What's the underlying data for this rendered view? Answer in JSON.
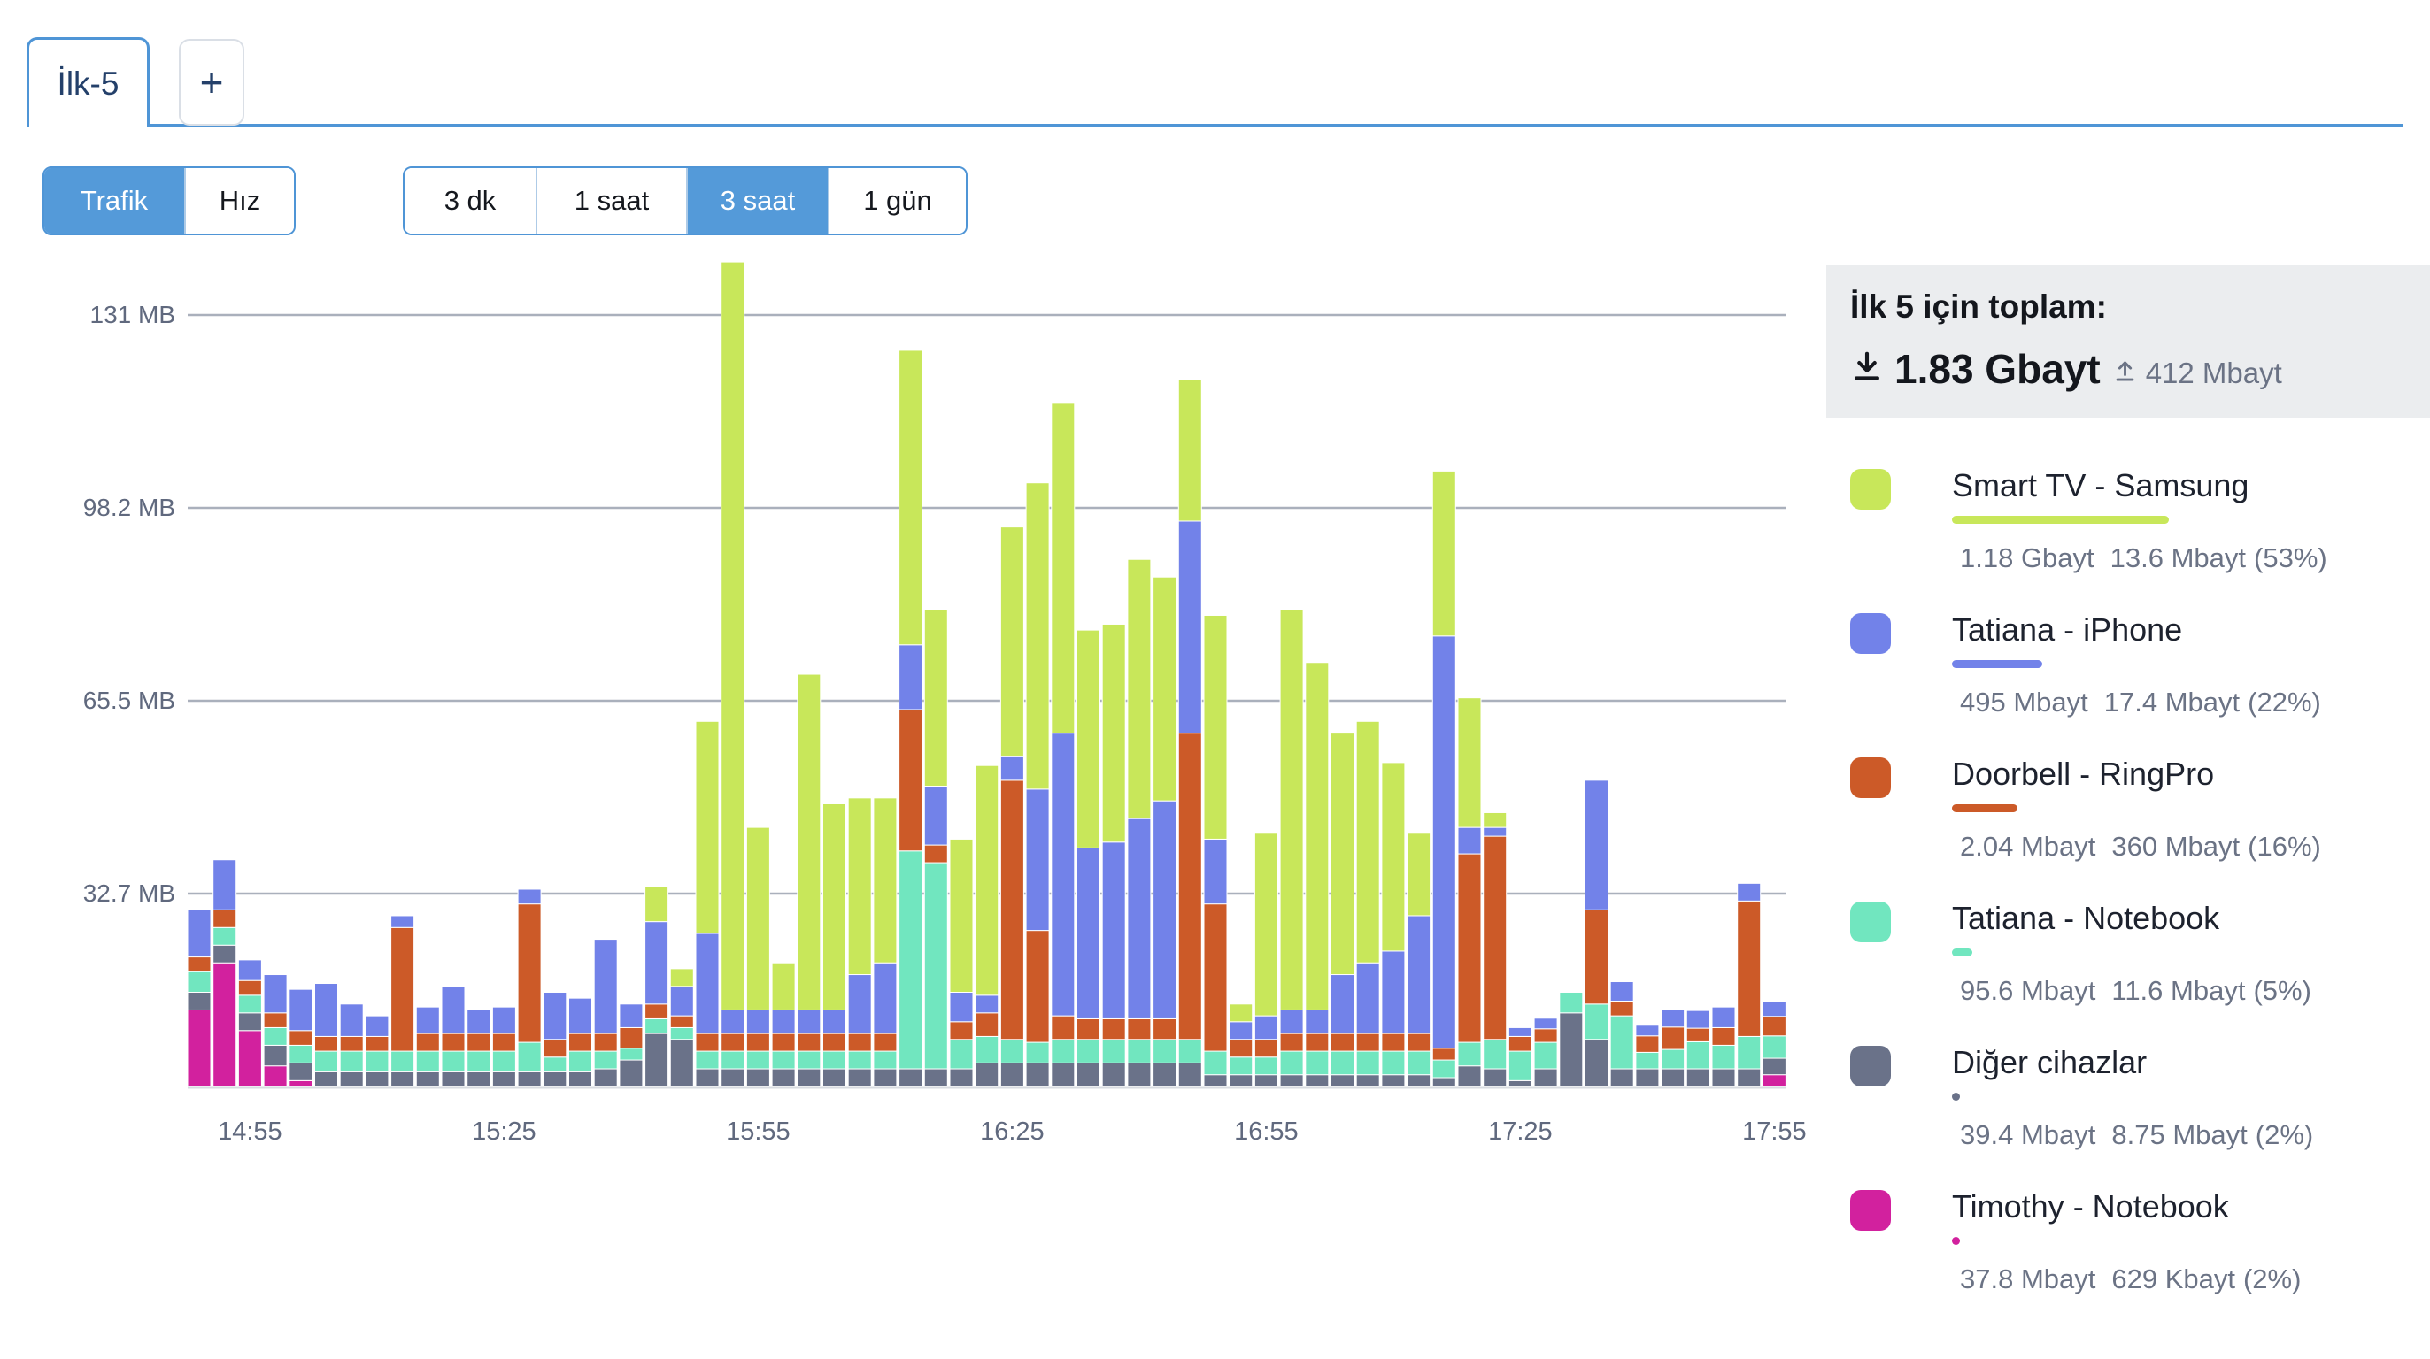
{
  "tabs": {
    "active_tab": "İlk-5",
    "add_tab": "+"
  },
  "controls": {
    "mode_toggle": {
      "options": [
        "Trafik",
        "Hız"
      ],
      "selected": "Trafik"
    },
    "range_toggle": {
      "options": [
        "3 dk",
        "1 saat",
        "3 saat",
        "1 gün"
      ],
      "selected": "3 saat"
    }
  },
  "summary": {
    "title": "İlk 5 için toplam:",
    "download": "1.83 Gbayt",
    "upload": "412 Mbayt"
  },
  "legend": {
    "items": [
      {
        "name": "Smart TV - Samsung",
        "color": "#c8e75a",
        "download": "1.18 Gbayt",
        "upload": "13.6 Mbayt",
        "share": "(53%)",
        "pct": 53
      },
      {
        "name": "Tatiana - iPhone",
        "color": "#7282e9",
        "download": "495 Mbayt",
        "upload": "17.4 Mbayt",
        "share": "(22%)",
        "pct": 22
      },
      {
        "name": "Doorbell - RingPro",
        "color": "#cc5a28",
        "download": "2.04 Mbayt",
        "upload": "360 Mbayt",
        "share": "(16%)",
        "pct": 16
      },
      {
        "name": "Tatiana - Notebook",
        "color": "#71e6bf",
        "download": "95.6 Mbayt",
        "upload": "11.6 Mbayt",
        "share": "(5%)",
        "pct": 5
      },
      {
        "name": "Diğer cihazlar",
        "color": "#6a7289",
        "download": "39.4 Mbayt",
        "upload": "8.75 Mbayt",
        "share": "(2%)",
        "pct": 2
      },
      {
        "name": "Timothy - Notebook",
        "color": "#d2219e",
        "download": "37.8 Mbayt",
        "upload": "629 Kbayt",
        "share": "(2%)",
        "pct": 2
      }
    ]
  },
  "chart_data": {
    "type": "bar",
    "stacked": true,
    "title": "",
    "xlabel": "",
    "ylabel": "",
    "unit": "MB",
    "interval_minutes": 3,
    "ylim": [
      0,
      143
    ],
    "grid": true,
    "y_ticks": [
      "32.7 MB",
      "65.5 MB",
      "98.2 MB",
      "131 MB"
    ],
    "y_tick_values_mb": [
      32.75,
      65.5,
      98.25,
      131
    ],
    "x_labels": [
      "14:55",
      "15:25",
      "15:55",
      "16:25",
      "16:55",
      "17:25",
      "17:55"
    ],
    "x_label_indices": [
      2,
      12,
      22,
      32,
      42,
      52,
      62
    ],
    "stack_order_bottom_to_top": [
      "Timothy - Notebook",
      "Diğer cihazlar",
      "Tatiana - Notebook",
      "Doorbell - RingPro",
      "Tatiana - iPhone",
      "Smart TV - Samsung"
    ],
    "series": [
      {
        "name": "Timothy - Notebook",
        "color": "#d2219e",
        "values": [
          13,
          21,
          9.5,
          3.5,
          1,
          0,
          0,
          0,
          0,
          0,
          0,
          0,
          0,
          0,
          0,
          0,
          0,
          0,
          0,
          0,
          0,
          0,
          0,
          0,
          0,
          0,
          0,
          0,
          0,
          0,
          0,
          0,
          0,
          0,
          0,
          0,
          0,
          0,
          0,
          0,
          0,
          0,
          0,
          0,
          0,
          0,
          0,
          0,
          0,
          0,
          0,
          0,
          0,
          0,
          0,
          0,
          0,
          0,
          0,
          0,
          0,
          0,
          2
        ]
      },
      {
        "name": "Diğer cihazlar",
        "color": "#6a7289",
        "values": [
          3,
          3,
          3,
          3.5,
          3,
          2.5,
          2.5,
          2.5,
          2.5,
          2.5,
          2.5,
          2.5,
          2.5,
          2.5,
          2.5,
          2.5,
          3,
          4.5,
          9,
          8,
          3,
          3,
          3,
          3,
          3,
          3,
          3,
          3,
          3,
          3,
          3,
          4,
          4,
          4,
          4,
          4,
          4,
          4,
          4,
          4,
          2,
          2,
          2,
          2,
          2,
          2,
          2,
          2,
          2,
          1.5,
          3.5,
          3,
          1,
          3,
          12.5,
          8,
          3,
          3,
          3,
          3,
          3,
          3,
          2.8
        ]
      },
      {
        "name": "Tatiana - Notebook",
        "color": "#71e6bf",
        "values": [
          3.5,
          3,
          3,
          3,
          3,
          3.5,
          3.5,
          3.5,
          3.5,
          3.5,
          3.5,
          3.5,
          3.5,
          5,
          2.5,
          3.5,
          3,
          2,
          2.5,
          2,
          3,
          3,
          3,
          3,
          3,
          3,
          3,
          3,
          37,
          35,
          5,
          4.5,
          4,
          3.5,
          4,
          4,
          4,
          4,
          4,
          4,
          4,
          3,
          3,
          4,
          4,
          4,
          4,
          4,
          4,
          3,
          4,
          5,
          5,
          4.5,
          3.5,
          6,
          9,
          2.8,
          3.3,
          4.6,
          4,
          5.5,
          3.8
        ]
      },
      {
        "name": "Doorbell - RingPro",
        "color": "#cc5a28",
        "values": [
          2.5,
          3,
          2.5,
          2.5,
          2.5,
          2.5,
          2.5,
          2.5,
          21,
          3,
          3,
          3,
          3,
          23.5,
          3,
          3,
          3,
          3.5,
          2.5,
          2,
          3,
          3,
          3,
          3,
          3,
          3,
          3,
          3,
          24,
          3,
          3,
          4,
          44,
          19,
          4,
          3.5,
          3.5,
          3.5,
          3.5,
          52,
          25,
          3,
          3,
          3,
          3,
          3,
          3,
          3,
          3,
          2,
          32,
          34.5,
          2.5,
          2.3,
          0,
          16,
          2.5,
          2.8,
          3.8,
          2.3,
          3,
          23,
          3.3
        ]
      },
      {
        "name": "Tatiana - iPhone",
        "color": "#7282e9",
        "values": [
          8,
          8.5,
          3.5,
          6.5,
          7,
          9,
          5.5,
          3.5,
          2,
          4.5,
          8,
          4,
          4.5,
          2.5,
          8,
          6,
          16,
          4,
          14,
          5,
          17,
          4,
          4,
          4,
          4,
          4,
          10,
          12,
          11,
          10,
          5,
          3,
          4,
          24,
          48,
          29,
          30,
          34,
          37,
          36,
          11,
          3,
          4,
          4,
          4,
          10,
          12,
          14,
          20,
          70,
          4.5,
          1.5,
          1.5,
          1.8,
          0,
          22,
          3.3,
          1.8,
          3,
          3,
          3.5,
          3,
          2.5
        ]
      },
      {
        "name": "Smart TV - Samsung",
        "color": "#c8e75a",
        "values": [
          0,
          0,
          0,
          0,
          0,
          0,
          0,
          0,
          0,
          0,
          0,
          0,
          0,
          0,
          0,
          0,
          0,
          0,
          6,
          3,
          36,
          127,
          31,
          8,
          57,
          35,
          30,
          28,
          50,
          30,
          26,
          39,
          39,
          52,
          56,
          37,
          37,
          44,
          38,
          24,
          38,
          3,
          31,
          68,
          59,
          41,
          41,
          32,
          14,
          28,
          22,
          2.5,
          0,
          0,
          0,
          0,
          0,
          0,
          0,
          0,
          0,
          0,
          0
        ]
      }
    ]
  },
  "colors": {
    "accent_blue": "#4f95d6",
    "active_button_bg": "#549ad9",
    "grid_line": "#aab0bc",
    "axis_text": "#60697e",
    "summary_bg": "#ebedef",
    "stat_text": "#6b7385"
  }
}
